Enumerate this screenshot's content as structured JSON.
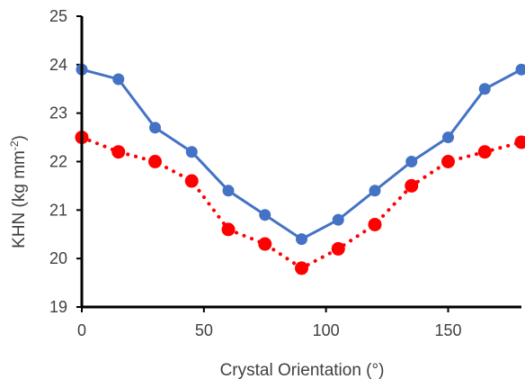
{
  "chart_data": {
    "type": "line",
    "title": "",
    "xlabel": "Crystal Orientation (°)",
    "ylabel_main": "KHN (kg mm",
    "ylabel_sup": "-2",
    "ylabel_tail": ")",
    "xlim": [
      0,
      180
    ],
    "ylim": [
      19,
      25
    ],
    "xticks": [
      0,
      50,
      100,
      150
    ],
    "yticks": [
      19,
      20,
      21,
      22,
      23,
      24,
      25
    ],
    "grid": false,
    "legend": "none",
    "series": [
      {
        "color": "#4472C4",
        "line_style": "solid",
        "x": [
          0,
          15,
          30,
          45,
          60,
          75,
          90,
          105,
          120,
          135,
          150,
          165,
          180
        ],
        "y": [
          23.9,
          23.7,
          22.7,
          22.2,
          21.4,
          20.9,
          20.4,
          20.8,
          21.4,
          22.0,
          22.5,
          23.5,
          23.9
        ]
      },
      {
        "color": "#FF0000",
        "line_style": "dotted",
        "x": [
          0,
          15,
          30,
          45,
          60,
          75,
          90,
          105,
          120,
          135,
          150,
          165,
          180
        ],
        "y": [
          22.5,
          22.2,
          22.0,
          21.6,
          20.6,
          20.3,
          19.8,
          20.2,
          20.7,
          21.5,
          22.0,
          22.2,
          22.4
        ]
      }
    ]
  }
}
